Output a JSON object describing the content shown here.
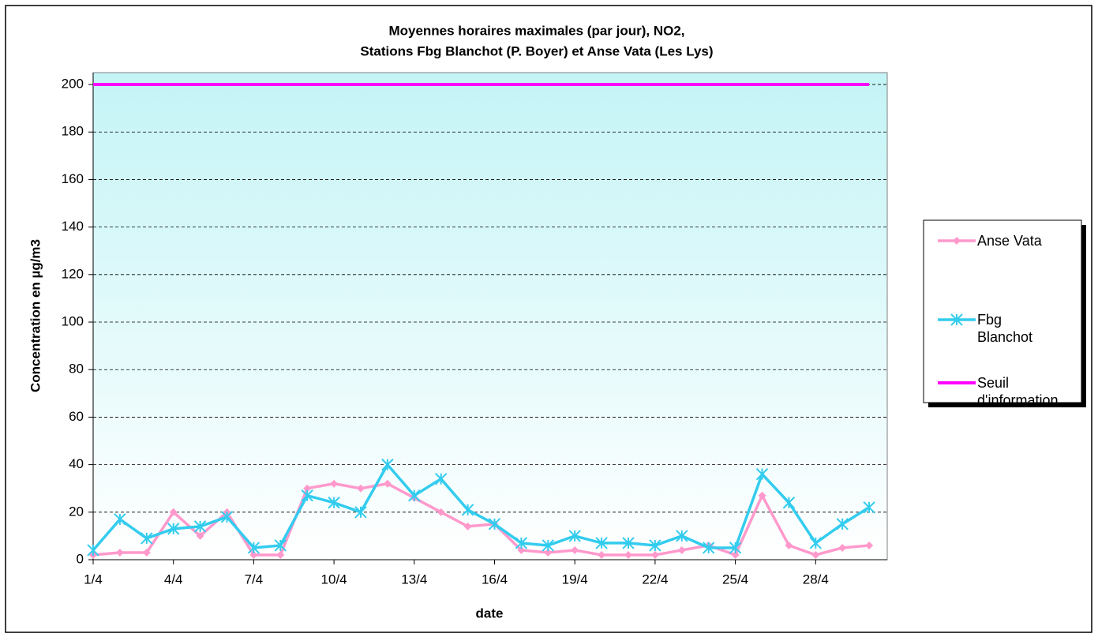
{
  "chart_data": {
    "type": "line",
    "title": [
      "Moyennes horaires maximales (par jour), NO2,",
      "Stations Fbg Blanchot (P. Boyer) et Anse Vata (Les Lys)"
    ],
    "x_label": "date",
    "y_label": "Concentration en µg/m3",
    "categories": [
      "1/4",
      null,
      null,
      "4/4",
      null,
      null,
      "7/4",
      null,
      null,
      "10/4",
      null,
      null,
      "13/4",
      null,
      null,
      "16/4",
      null,
      null,
      "19/4",
      null,
      null,
      "22/4",
      null,
      null,
      "25/4",
      null,
      null,
      "28/4",
      null,
      null
    ],
    "series": [
      {
        "name": "Anse Vata",
        "color": "#ff99cc",
        "marker": "diamond",
        "values": [
          2,
          3,
          3,
          20,
          10,
          20,
          2,
          2,
          30,
          32,
          30,
          32,
          26,
          20,
          14,
          15,
          4,
          3,
          4,
          2,
          2,
          2,
          4,
          6,
          2,
          27,
          6,
          2,
          5,
          6
        ]
      },
      {
        "name": "Fbg Blanchot",
        "color": "#33ccee",
        "marker": "star",
        "values": [
          4,
          17,
          9,
          13,
          14,
          18,
          5,
          6,
          27,
          24,
          20,
          40,
          27,
          34,
          21,
          15,
          7,
          6,
          10,
          7,
          7,
          6,
          10,
          5,
          5,
          36,
          24,
          7,
          15,
          22
        ]
      },
      {
        "name": "Seuil d'information",
        "color": "#ff00ff",
        "marker": "none",
        "values": [
          200,
          200,
          200,
          200,
          200,
          200,
          200,
          200,
          200,
          200,
          200,
          200,
          200,
          200,
          200,
          200,
          200,
          200,
          200,
          200,
          200,
          200,
          200,
          200,
          200,
          200,
          200,
          200,
          200,
          200
        ]
      }
    ],
    "ylim": [
      0,
      205
    ],
    "yticks": [
      0,
      20,
      40,
      60,
      80,
      100,
      120,
      140,
      160,
      180,
      200
    ],
    "grid": true,
    "legend": "right"
  }
}
